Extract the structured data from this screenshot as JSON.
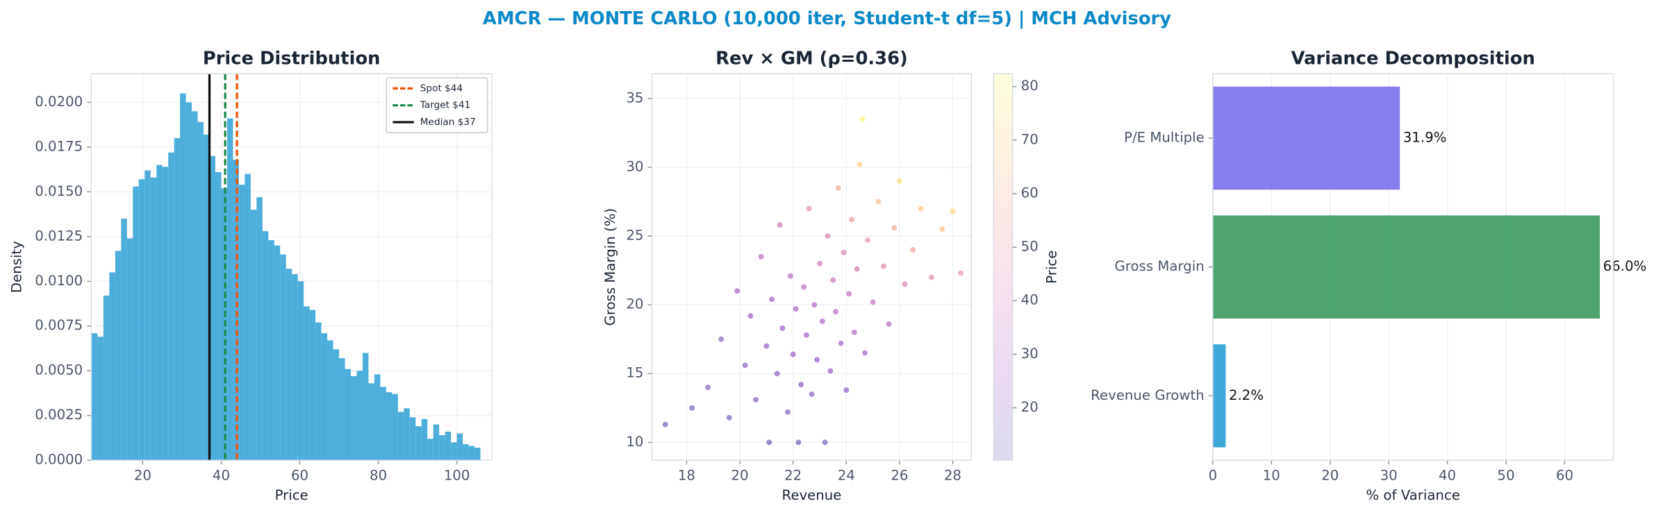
{
  "title": "AMCR — MONTE CARLO (10,000 iter, Student-t df=5) | MCH Advisory",
  "chart_data": [
    {
      "type": "histogram",
      "title": "Price Distribution",
      "x_label": "Price",
      "y_label": "Density",
      "color": "#2ea0d6",
      "grid": true,
      "bins": [
        7,
        8.5,
        10,
        11.5,
        13,
        14.5,
        16,
        17.5,
        19,
        20.5,
        22,
        23.5,
        25,
        26.5,
        28,
        29.5,
        31,
        32.5,
        34,
        35.5,
        37,
        38.5,
        40,
        41.5,
        43,
        44.5,
        46,
        47.5,
        49,
        50.5,
        52,
        53.5,
        55,
        56.5,
        58,
        59.5,
        61,
        62.5,
        64,
        65.5,
        67,
        68.5,
        70,
        71.5,
        73,
        74.5,
        76,
        77.5,
        79,
        80.5,
        82,
        83.5,
        85,
        86.5,
        88,
        89.5,
        91,
        92.5,
        94,
        95.5,
        97,
        98.5,
        100,
        101.5,
        103,
        104.5,
        106
      ],
      "values": [
        0.0071,
        0.0069,
        0.0092,
        0.0105,
        0.0117,
        0.0135,
        0.0124,
        0.0153,
        0.0157,
        0.0162,
        0.0158,
        0.0165,
        0.0164,
        0.0172,
        0.018,
        0.0205,
        0.02,
        0.0195,
        0.0189,
        0.0182,
        0.017,
        0.0161,
        0.0152,
        0.0191,
        0.0168,
        0.0154,
        0.016,
        0.014,
        0.0147,
        0.0128,
        0.0123,
        0.012,
        0.0115,
        0.0107,
        0.0104,
        0.01,
        0.0086,
        0.0084,
        0.0077,
        0.0071,
        0.0067,
        0.0062,
        0.0057,
        0.0051,
        0.0047,
        0.005,
        0.006,
        0.0043,
        0.0048,
        0.0041,
        0.0038,
        0.0037,
        0.0027,
        0.0029,
        0.0024,
        0.0019,
        0.0023,
        0.0012,
        0.002,
        0.0014,
        0.0016,
        0.001,
        0.0015,
        0.0009,
        0.0008,
        0.0007
      ],
      "xlim": [
        6.9,
        108.9
      ],
      "ylim": [
        0,
        0.0216
      ],
      "xticks": [
        20,
        40,
        60,
        80,
        100
      ],
      "yticks": [
        {
          "value": 0,
          "label": "0.0000"
        },
        {
          "value": 0.0025,
          "label": "0.0025"
        },
        {
          "value": 0.005,
          "label": "0.0050"
        },
        {
          "value": 0.0075,
          "label": "0.0075"
        },
        {
          "value": 0.01,
          "label": "0.0100"
        },
        {
          "value": 0.0125,
          "label": "0.0125"
        },
        {
          "value": 0.015,
          "label": "0.0150"
        },
        {
          "value": 0.0175,
          "label": "0.0175"
        },
        {
          "value": 0.02,
          "label": "0.0200"
        }
      ],
      "vlines": [
        {
          "value": 44,
          "label": "Spot $44",
          "color": "#e8590c",
          "style": "dashed"
        },
        {
          "value": 41,
          "label": "Target $41",
          "color": "#1e8a4c",
          "style": "dashed"
        },
        {
          "value": 37,
          "label": "Median $37",
          "color": "#111111",
          "style": "solid"
        }
      ],
      "legend": "upper right"
    },
    {
      "type": "scatter",
      "title": "Rev × GM (ρ=0.36)",
      "x_label": "Revenue",
      "y_label": "Gross Margin (%)",
      "colormap": "plasma",
      "colorbar_label": "Price",
      "grid": true,
      "x": [
        18.2,
        18.8,
        19.3,
        19.6,
        19.9,
        20.2,
        20.4,
        20.6,
        20.8,
        21.0,
        21.1,
        21.2,
        21.4,
        21.5,
        21.6,
        21.8,
        21.9,
        22.0,
        22.1,
        22.2,
        22.3,
        22.4,
        22.5,
        22.6,
        22.7,
        22.8,
        22.9,
        23.0,
        23.1,
        23.2,
        23.3,
        23.4,
        23.5,
        23.6,
        23.7,
        23.8,
        23.9,
        24.0,
        24.1,
        24.2,
        24.3,
        24.4,
        24.5,
        24.7,
        24.8,
        25.0,
        25.2,
        25.4,
        25.6,
        25.8,
        26.0,
        26.2,
        26.5,
        26.8,
        27.2,
        27.6,
        28.0,
        17.2,
        24.6,
        28.3
      ],
      "y": [
        12.5,
        14.0,
        17.5,
        11.8,
        21.0,
        15.6,
        19.2,
        13.1,
        23.5,
        17.0,
        10.0,
        20.4,
        15.0,
        25.8,
        18.3,
        12.2,
        22.1,
        16.4,
        19.7,
        10.0,
        14.2,
        21.3,
        17.8,
        27.0,
        13.5,
        20.0,
        16.0,
        23.0,
        18.8,
        10.0,
        25.0,
        15.2,
        21.8,
        19.5,
        28.5,
        17.2,
        23.8,
        13.8,
        20.8,
        26.2,
        18.0,
        22.6,
        30.2,
        16.5,
        24.7,
        20.2,
        27.5,
        22.8,
        18.6,
        25.6,
        29.0,
        21.5,
        24.0,
        27.0,
        22.0,
        25.5,
        26.8,
        11.3,
        33.5,
        22.3
      ],
      "c": [
        15,
        17,
        20,
        15,
        26,
        20,
        24,
        17,
        33,
        22,
        13,
        27,
        20,
        40,
        25,
        16,
        31,
        23,
        28,
        14,
        20,
        32,
        26,
        46,
        19,
        30,
        24,
        38,
        29,
        15,
        44,
        23,
        36,
        32,
        58,
        27,
        43,
        21,
        35,
        52,
        30,
        41,
        70,
        27,
        50,
        36,
        62,
        45,
        33,
        58,
        74,
        42,
        55,
        68,
        47,
        64,
        72,
        13,
        80,
        50
      ],
      "xlim": [
        16.7,
        28.7
      ],
      "ylim": [
        8.7,
        36.8
      ],
      "xticks": [
        18,
        20,
        22,
        24,
        26,
        28
      ],
      "yticks": [
        10,
        15,
        20,
        25,
        30,
        35
      ],
      "clim": [
        10.2,
        82.4
      ],
      "cticks": [
        20,
        30,
        40,
        50,
        60,
        70,
        80
      ]
    },
    {
      "type": "bar",
      "orientation": "horizontal",
      "title": "Variance Decomposition",
      "x_label": "% of Variance",
      "grid": true,
      "categories": [
        "P/E Multiple",
        "Gross Margin",
        "Revenue Growth"
      ],
      "values": [
        31.9,
        66.0,
        2.2
      ],
      "value_labels": [
        "31.9%",
        "66.0%",
        "2.2%"
      ],
      "colors": [
        "#7b6fea",
        "#3a9a5f",
        "#2b9fd4"
      ],
      "xlim": [
        0,
        68.3
      ],
      "xticks": [
        0,
        10,
        20,
        30,
        40,
        50,
        60
      ]
    }
  ]
}
